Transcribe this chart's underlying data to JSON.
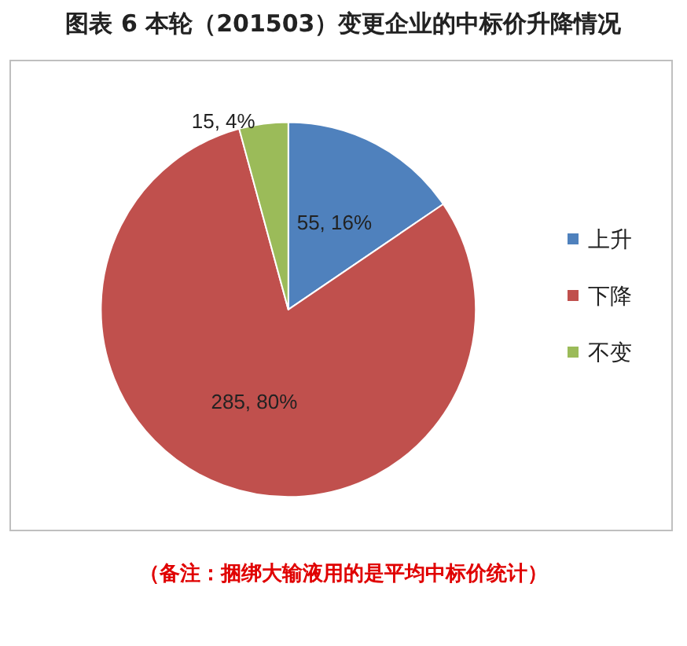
{
  "chart_data": {
    "type": "pie",
    "title": "图表 6 本轮（201503）变更企业的中标价升降情况",
    "categories": [
      "上升",
      "下降",
      "不变"
    ],
    "values": [
      55,
      285,
      15
    ],
    "colors": [
      "#4f81bd",
      "#c0504d",
      "#9bbb59"
    ],
    "value_labels": [
      "55, 16%",
      "285, 80%",
      "15, 4%"
    ],
    "legend": "right",
    "annotations": [
      "（备注：捆绑大输液用的是平均中标价统计）"
    ]
  }
}
